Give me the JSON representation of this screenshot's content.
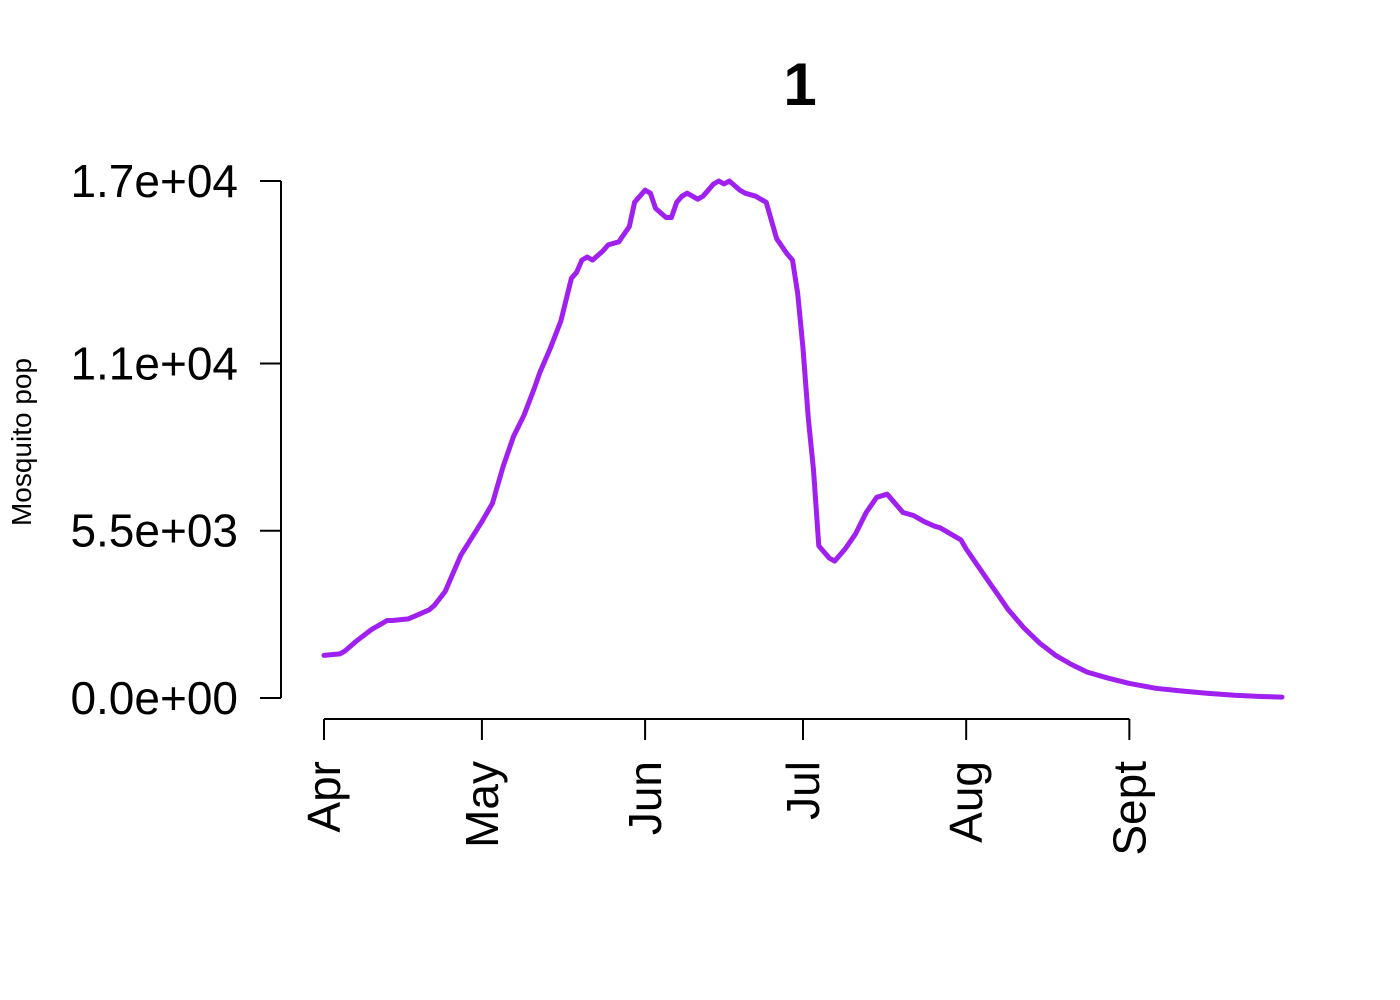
{
  "chart_data": {
    "type": "line",
    "title": "1",
    "xlabel": "",
    "ylabel": "Mosquito pop",
    "y_ticks": [
      0,
      5500,
      11000,
      17000
    ],
    "y_tick_labels": [
      "0.0e+00",
      "5.5e+03",
      "1.1e+04",
      "1.7e+04"
    ],
    "ylim": [
      0,
      17000
    ],
    "x_ticks": [
      "2000-04-01",
      "2000-05-01",
      "2000-06-01",
      "2000-07-01",
      "2000-08-01",
      "2000-09-01"
    ],
    "x_tick_labels": [
      "Apr",
      "May",
      "Jun",
      "Jul",
      "Aug",
      "Sept"
    ],
    "xlim": [
      "2000-04-01",
      "2000-09-30"
    ],
    "grid": false,
    "legend": "none",
    "series": [
      {
        "color": "#a020f0",
        "x": [
          "2000-04-01",
          "2000-04-04",
          "2000-04-05",
          "2000-04-07",
          "2000-04-10",
          "2000-04-13",
          "2000-04-14",
          "2000-04-17",
          "2000-04-19",
          "2000-04-21",
          "2000-04-22",
          "2000-04-24",
          "2000-04-26",
          "2000-04-27",
          "2000-05-01",
          "2000-05-03",
          "2000-05-05",
          "2000-05-07",
          "2000-05-09",
          "2000-05-11",
          "2000-05-12",
          "2000-05-14",
          "2000-05-16",
          "2000-05-18",
          "2000-05-19",
          "2000-05-20",
          "2000-05-21",
          "2000-05-22",
          "2000-05-24",
          "2000-05-25",
          "2000-05-27",
          "2000-05-29",
          "2000-05-30",
          "2000-06-01",
          "2000-06-02",
          "2000-06-03",
          "2000-06-05",
          "2000-06-06",
          "2000-06-07",
          "2000-06-08",
          "2000-06-09",
          "2000-06-11",
          "2000-06-12",
          "2000-06-13",
          "2000-06-14",
          "2000-06-15",
          "2000-06-16",
          "2000-06-17",
          "2000-06-19",
          "2000-06-20",
          "2000-06-22",
          "2000-06-24",
          "2000-06-26",
          "2000-06-28",
          "2000-06-29",
          "2000-06-30",
          "2000-07-01",
          "2000-07-02",
          "2000-07-03",
          "2000-07-04",
          "2000-07-06",
          "2000-07-07",
          "2000-07-08",
          "2000-07-09",
          "2000-07-11",
          "2000-07-13",
          "2000-07-15",
          "2000-07-17",
          "2000-07-18",
          "2000-07-19",
          "2000-07-20",
          "2000-07-21",
          "2000-07-22",
          "2000-07-24",
          "2000-07-26",
          "2000-07-27",
          "2000-07-28",
          "2000-07-29",
          "2000-07-31",
          "2000-08-01",
          "2000-08-03",
          "2000-08-05",
          "2000-08-07",
          "2000-08-09",
          "2000-08-12",
          "2000-08-15",
          "2000-08-18",
          "2000-08-21",
          "2000-08-24",
          "2000-08-28",
          "2000-09-01",
          "2000-09-06",
          "2000-09-11",
          "2000-09-16",
          "2000-09-21",
          "2000-09-26",
          "2000-09-30"
        ],
        "y": [
          1400,
          1450,
          1550,
          1850,
          2250,
          2550,
          2550,
          2600,
          2750,
          2900,
          3050,
          3500,
          4300,
          4700,
          5800,
          6400,
          7600,
          8600,
          9300,
          10200,
          10700,
          11500,
          12400,
          13800,
          14000,
          14400,
          14500,
          14400,
          14700,
          14900,
          15000,
          15500,
          16300,
          16700,
          16600,
          16100,
          15800,
          15800,
          16300,
          16500,
          16600,
          16400,
          16500,
          16700,
          16900,
          17000,
          16900,
          17000,
          16700,
          16600,
          16500,
          16300,
          15100,
          14600,
          14400,
          13300,
          11500,
          9200,
          7500,
          5000,
          4600,
          4500,
          4700,
          4900,
          5400,
          6100,
          6600,
          6700,
          6500,
          6300,
          6100,
          6050,
          6000,
          5800,
          5650,
          5600,
          5500,
          5400,
          5200,
          4900,
          4400,
          3900,
          3400,
          2900,
          2300,
          1800,
          1400,
          1100,
          850,
          650,
          480,
          320,
          230,
          150,
          90,
          50,
          30
        ]
      }
    ]
  }
}
